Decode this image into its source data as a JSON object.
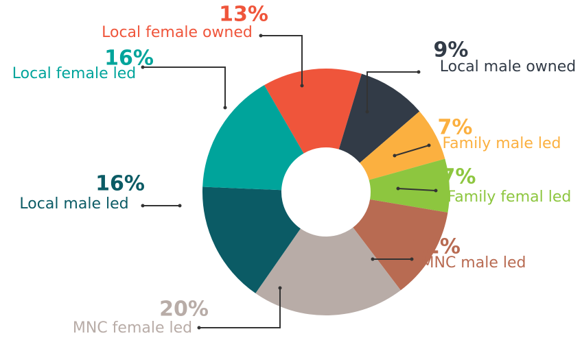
{
  "chart_data": {
    "type": "donut",
    "categories": [
      "Local female owned",
      "Local male owned",
      "Family male led",
      "Family femal led",
      "MNC male led",
      "MNC female led",
      "Local male led",
      "Local female led"
    ],
    "values": [
      13,
      9,
      7,
      7,
      12,
      20,
      16,
      16
    ],
    "value_labels": [
      "13%",
      "9%",
      "7%",
      "7%",
      "12%",
      "20%",
      "16%",
      "16%"
    ],
    "colors": [
      "#ef553b",
      "#323b47",
      "#fbb040",
      "#8dc63f",
      "#b86b52",
      "#b8aca7",
      "#0b5b65",
      "#00a49b"
    ]
  }
}
